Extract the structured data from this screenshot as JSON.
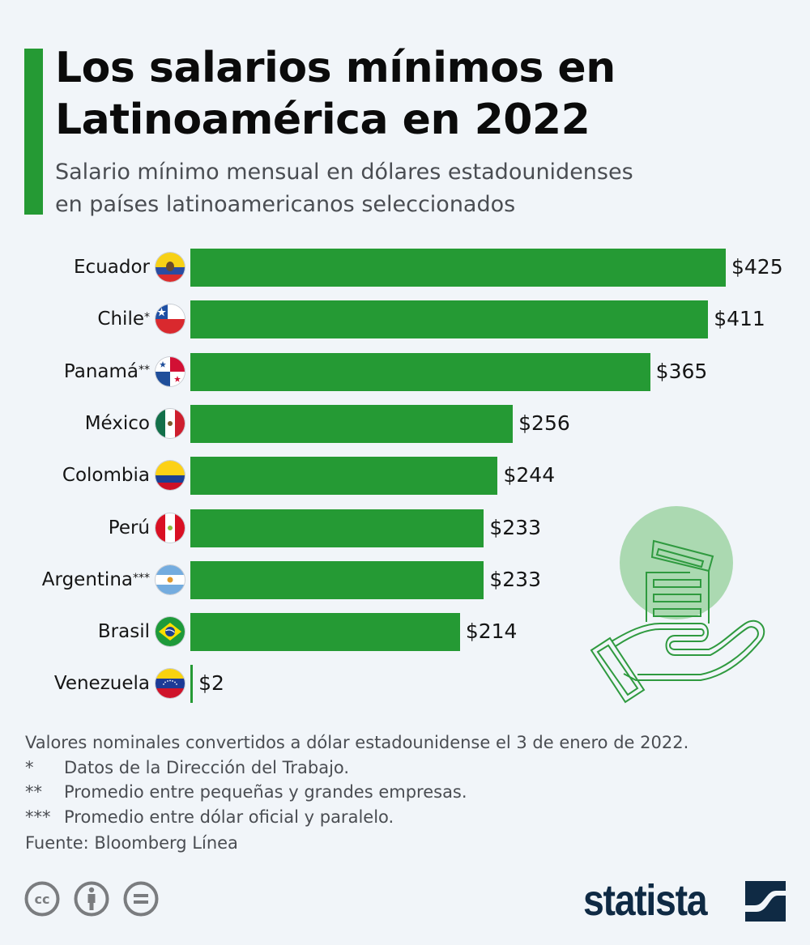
{
  "header": {
    "title_line1": "Los salarios mínimos en",
    "title_line2": "Latinoamérica en 2022",
    "subtitle_line1": "Salario mínimo mensual en dólares estadounidenses",
    "subtitle_line2": "en países latinoamericanos seleccionados"
  },
  "colors": {
    "accent": "#259a34",
    "background": "#f1f5f9",
    "brand": "#0f2a44",
    "illustration_circle": "#9fd4a4"
  },
  "chart_data": {
    "type": "bar",
    "orientation": "horizontal",
    "title": "Los salarios mínimos en Latinoamérica en 2022",
    "subtitle": "Salario mínimo mensual en dólares estadounidenses en países latinoamericanos seleccionados",
    "xlabel": "",
    "ylabel": "",
    "unit": "USD",
    "xlim": [
      0,
      425
    ],
    "grid": false,
    "categories": [
      "Ecuador",
      "Chile",
      "Panamá",
      "México",
      "Colombia",
      "Perú",
      "Argentina",
      "Brasil",
      "Venezuela"
    ],
    "category_marks": [
      "",
      "*",
      "**",
      "",
      "",
      "",
      "***",
      "",
      ""
    ],
    "flag_icons": [
      "ecuador-flag",
      "chile-flag",
      "panama-flag",
      "mexico-flag",
      "colombia-flag",
      "peru-flag",
      "argentina-flag",
      "brazil-flag",
      "venezuela-flag"
    ],
    "values": [
      425,
      411,
      365,
      256,
      244,
      233,
      233,
      214,
      2
    ],
    "value_labels": [
      "$425",
      "$411",
      "$365",
      "$256",
      "$244",
      "$233",
      "$233",
      "$214",
      "$2"
    ]
  },
  "notes": {
    "main": "Valores nominales convertidos a dólar estadounidense el 3 de enero de 2022.",
    "footnotes": [
      {
        "mark": "*",
        "text": "Datos de la Dirección del Trabajo."
      },
      {
        "mark": "**",
        "text": "Promedio entre pequeñas y grandes empresas."
      },
      {
        "mark": "***",
        "text": "Promedio entre dólar oficial y paralelo."
      }
    ],
    "source": "Fuente: Bloomberg Línea"
  },
  "footer": {
    "license_icons": [
      "cc-icon",
      "attribution-icon",
      "no-derivatives-icon"
    ],
    "brand": "statista"
  }
}
